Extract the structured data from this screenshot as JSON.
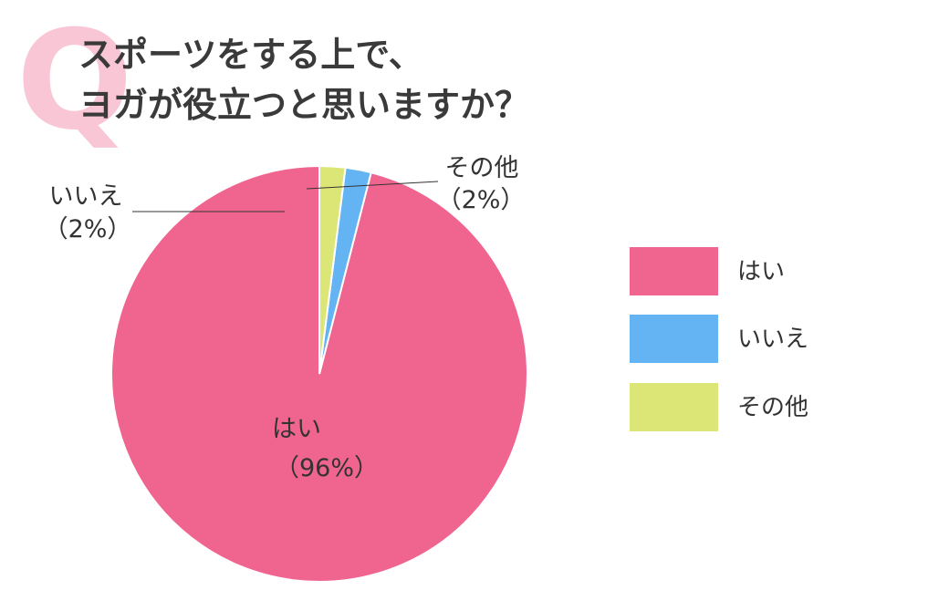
{
  "question_mark": "Q",
  "title_lines": [
    "スポーツをする上で、",
    "ヨガが役立つと思いますか？"
  ],
  "chart_data": {
    "type": "pie",
    "title": "スポーツをする上で、ヨガが役立つと思いますか？",
    "start": "12 o'clock",
    "direction": "counterclockwise",
    "slices": [
      {
        "label": "はい",
        "value": 96,
        "value_label": "（96%）",
        "color": "#f06490"
      },
      {
        "label": "いいえ",
        "value": 2,
        "value_label": "（2%）",
        "color": "#64b4f4"
      },
      {
        "label": "その他",
        "value": 2,
        "value_label": "（2%）",
        "color": "#dce676"
      }
    ],
    "legend_position": "right",
    "slice_border_color": "#ffffff"
  },
  "leader_line_color": "#333333"
}
